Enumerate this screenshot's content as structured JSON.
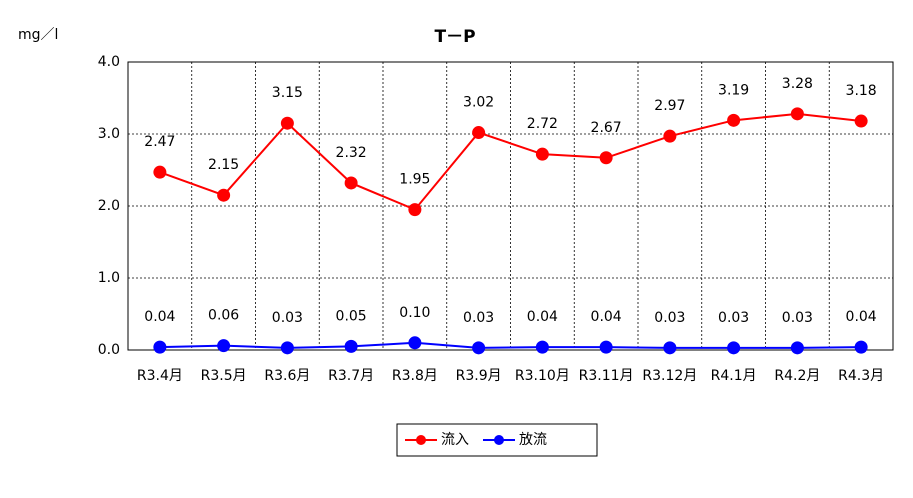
{
  "chart_data": {
    "type": "line",
    "title": "T－P",
    "y_label": "mg／l",
    "categories": [
      "R3.4月",
      "R3.5月",
      "R3.6月",
      "R3.7月",
      "R3.8月",
      "R3.9月",
      "R3.10月",
      "R3.11月",
      "R3.12月",
      "R4.1月",
      "R4.2月",
      "R4.3月"
    ],
    "series": [
      {
        "name": "流入",
        "color": "#ff0000",
        "values": [
          2.47,
          2.15,
          3.15,
          2.32,
          1.95,
          3.02,
          2.72,
          2.67,
          2.97,
          3.19,
          3.28,
          3.18
        ]
      },
      {
        "name": "放流",
        "color": "#0000ff",
        "values": [
          0.04,
          0.06,
          0.03,
          0.05,
          0.1,
          0.03,
          0.04,
          0.04,
          0.03,
          0.03,
          0.03,
          0.04
        ],
        "value_labels": [
          "0.04",
          "0.06",
          "0.03",
          "0.05",
          "0.10",
          "0.03",
          "0.04",
          "0.04",
          "0.03",
          "0.03",
          "0.03",
          "0.04"
        ]
      }
    ],
    "ylim": [
      0,
      4
    ],
    "yticks": [
      {
        "value": 0,
        "label": "0.0"
      },
      {
        "value": 1,
        "label": "1.0"
      },
      {
        "value": 2,
        "label": "2.0"
      },
      {
        "value": 3,
        "label": "3.0"
      },
      {
        "value": 4,
        "label": "4.0"
      }
    ],
    "grid": true,
    "legend": "bottom"
  }
}
